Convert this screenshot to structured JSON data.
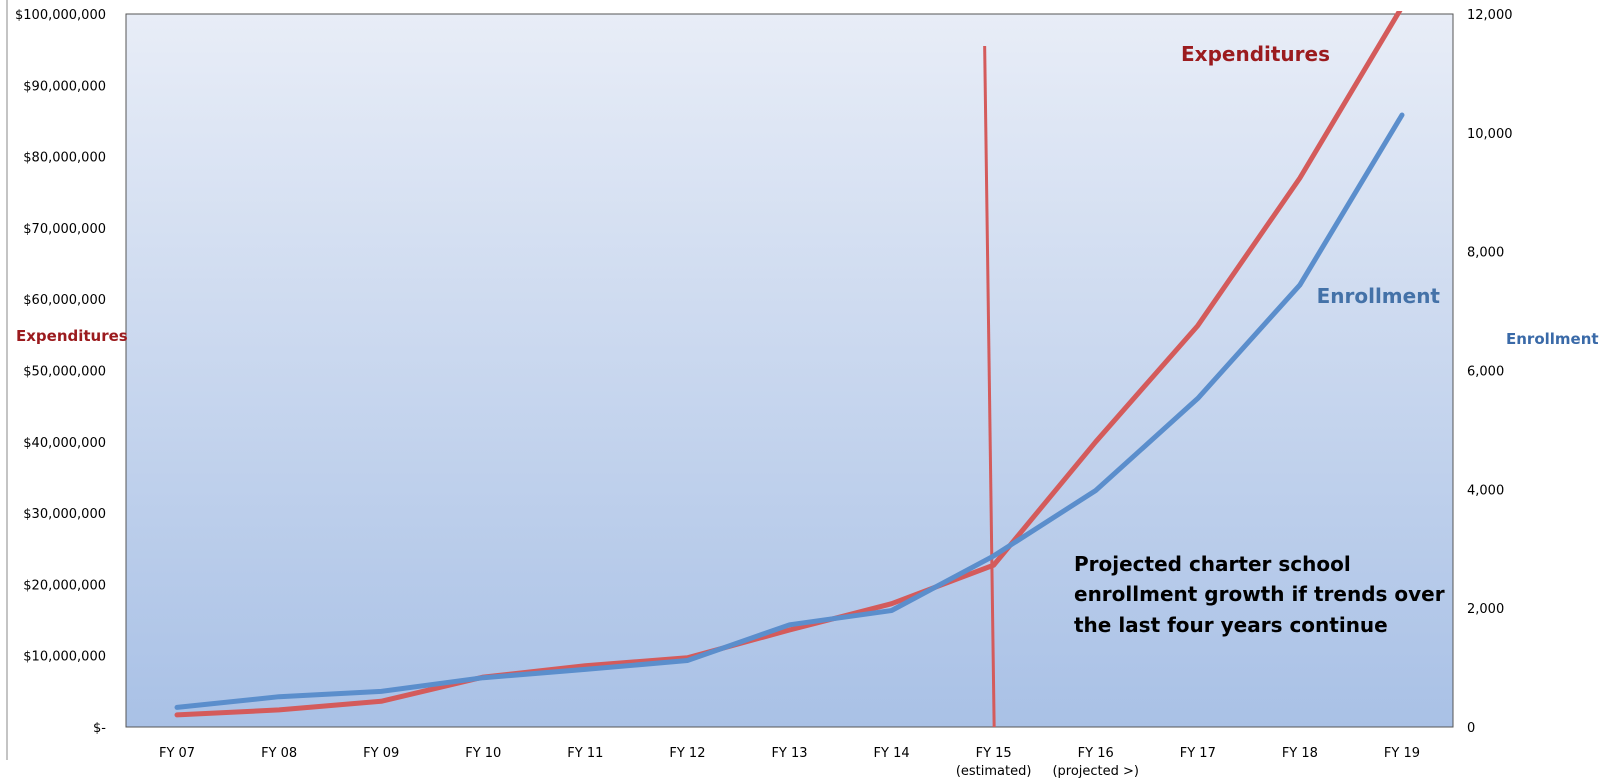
{
  "chart_data": {
    "type": "line",
    "categories": [
      "FY 07",
      "FY 08",
      "FY 09",
      "FY 10",
      "FY 11",
      "FY 12",
      "FY 13",
      "FY 14",
      "FY 15",
      "FY 16",
      "FY 17",
      "FY 18",
      "FY 19"
    ],
    "category_sublabels": [
      "",
      "",
      "",
      "",
      "",
      "",
      "",
      "",
      "(estimated)",
      "(projected >)",
      "",
      "",
      ""
    ],
    "left_axis": {
      "label": "Expenditures",
      "ylim": [
        0,
        100000000
      ],
      "tick_labels": [
        "$-",
        "$10,000,000",
        "$20,000,000",
        "$30,000,000",
        "$40,000,000",
        "$50,000,000",
        "$60,000,000",
        "$70,000,000",
        "$80,000,000",
        "$90,000,000",
        "$100,000,000"
      ],
      "color": "#9b1b1e"
    },
    "right_axis": {
      "label": "Enrollment",
      "ylim": [
        0,
        12000
      ],
      "tick_labels": [
        "0",
        "2,000",
        "4,000",
        "6,000",
        "8,000",
        "10,000",
        "12,000"
      ],
      "color": "#3a6aa8"
    },
    "series": [
      {
        "name": "Expenditures",
        "axis": "left",
        "color": "#d45b5b",
        "values": [
          1700000,
          2400000,
          3600000,
          7000000,
          8600000,
          9700000,
          13600000,
          17300000,
          22700000,
          40000000,
          56300000,
          77000000,
          101000000
        ]
      },
      {
        "name": "Enrollment",
        "axis": "right",
        "color": "#5b8ecc",
        "values": [
          330,
          510,
          600,
          830,
          970,
          1120,
          1720,
          1960,
          2880,
          3980,
          5530,
          7440,
          10300
        ]
      }
    ],
    "divider": {
      "at_category": "FY 15",
      "color": "#d45b5b"
    },
    "annotation": [
      "Projected charter school",
      "enrollment growth if trends over",
      "the last four years continue"
    ],
    "grid": false
  }
}
